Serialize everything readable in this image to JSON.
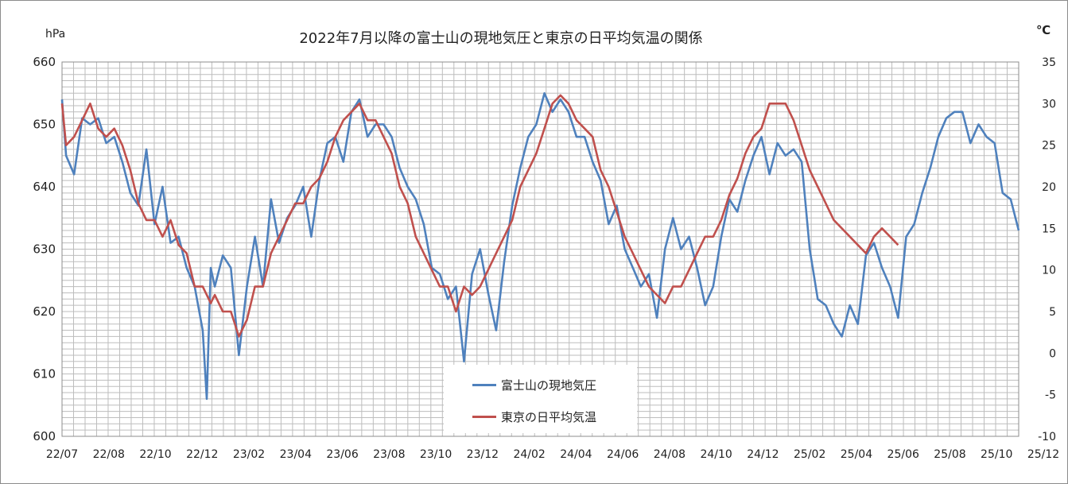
{
  "chart_data": {
    "type": "line",
    "title": "2022年7月以降の富士山の現地気圧と東京の日平均気温の関係",
    "y_left_unit": "hPa",
    "y_right_unit": "℃",
    "y_left_range": [
      600,
      660
    ],
    "y_right_range": [
      -10,
      35
    ],
    "y_left_ticks": [
      "600",
      "610",
      "620",
      "630",
      "640",
      "650",
      "660"
    ],
    "y_right_ticks": [
      "-10",
      "-5",
      "0",
      "5",
      "10",
      "15",
      "20",
      "25",
      "30",
      "35"
    ],
    "x_ticks": [
      "22/07",
      "22/08",
      "22/10",
      "22/12",
      "23/02",
      "23/04",
      "23/06",
      "23/08",
      "23/10",
      "23/12",
      "24/02",
      "24/04",
      "24/06",
      "24/08",
      "24/10",
      "24/12",
      "25/02",
      "25/04",
      "25/06",
      "25/08",
      "25/10",
      "25/12"
    ],
    "grid": true,
    "legend_position": "bottom-center",
    "series": [
      {
        "name": "富士山の現地気圧",
        "axis": "left",
        "color": "#4f81bd",
        "points": [
          [
            0,
            654
          ],
          [
            1,
            645
          ],
          [
            3,
            642
          ],
          [
            5,
            651
          ],
          [
            7,
            650
          ],
          [
            9,
            651
          ],
          [
            11,
            647
          ],
          [
            13,
            648
          ],
          [
            15,
            644
          ],
          [
            17,
            639
          ],
          [
            19,
            637
          ],
          [
            21,
            646
          ],
          [
            23,
            634
          ],
          [
            25,
            640
          ],
          [
            27,
            631
          ],
          [
            29,
            632
          ],
          [
            31,
            627
          ],
          [
            33,
            624
          ],
          [
            35,
            617
          ],
          [
            36,
            606
          ],
          [
            37,
            627
          ],
          [
            38,
            624
          ],
          [
            40,
            629
          ],
          [
            42,
            627
          ],
          [
            44,
            613
          ],
          [
            46,
            624
          ],
          [
            48,
            632
          ],
          [
            50,
            624
          ],
          [
            52,
            638
          ],
          [
            54,
            631
          ],
          [
            56,
            635
          ],
          [
            58,
            637
          ],
          [
            60,
            640
          ],
          [
            62,
            632
          ],
          [
            64,
            641
          ],
          [
            66,
            647
          ],
          [
            68,
            648
          ],
          [
            70,
            644
          ],
          [
            72,
            652
          ],
          [
            74,
            654
          ],
          [
            76,
            648
          ],
          [
            78,
            650
          ],
          [
            80,
            650
          ],
          [
            82,
            648
          ],
          [
            84,
            643
          ],
          [
            86,
            640
          ],
          [
            88,
            638
          ],
          [
            90,
            634
          ],
          [
            92,
            627
          ],
          [
            94,
            626
          ],
          [
            96,
            622
          ],
          [
            98,
            624
          ],
          [
            100,
            612
          ],
          [
            102,
            626
          ],
          [
            104,
            630
          ],
          [
            106,
            623
          ],
          [
            108,
            617
          ],
          [
            110,
            628
          ],
          [
            112,
            637
          ],
          [
            114,
            643
          ],
          [
            116,
            648
          ],
          [
            118,
            650
          ],
          [
            120,
            655
          ],
          [
            122,
            652
          ],
          [
            124,
            654
          ],
          [
            126,
            652
          ],
          [
            128,
            648
          ],
          [
            130,
            648
          ],
          [
            132,
            644
          ],
          [
            134,
            641
          ],
          [
            136,
            634
          ],
          [
            138,
            637
          ],
          [
            140,
            630
          ],
          [
            142,
            627
          ],
          [
            144,
            624
          ],
          [
            146,
            626
          ],
          [
            148,
            619
          ],
          [
            150,
            630
          ],
          [
            152,
            635
          ],
          [
            154,
            630
          ],
          [
            156,
            632
          ],
          [
            158,
            627
          ],
          [
            160,
            621
          ],
          [
            162,
            624
          ],
          [
            164,
            632
          ],
          [
            166,
            638
          ],
          [
            168,
            636
          ],
          [
            170,
            641
          ],
          [
            172,
            645
          ],
          [
            174,
            648
          ],
          [
            176,
            642
          ],
          [
            178,
            647
          ],
          [
            180,
            645
          ],
          [
            182,
            646
          ],
          [
            184,
            644
          ],
          [
            186,
            630
          ],
          [
            188,
            622
          ],
          [
            190,
            621
          ],
          [
            192,
            618
          ],
          [
            194,
            616
          ],
          [
            196,
            621
          ],
          [
            198,
            618
          ],
          [
            200,
            629
          ],
          [
            202,
            631
          ],
          [
            204,
            627
          ],
          [
            206,
            624
          ],
          [
            208,
            619
          ],
          [
            210,
            632
          ],
          [
            212,
            634
          ],
          [
            214,
            639
          ],
          [
            216,
            643
          ],
          [
            218,
            648
          ],
          [
            220,
            651
          ],
          [
            222,
            652
          ],
          [
            224,
            652
          ],
          [
            226,
            647
          ],
          [
            228,
            650
          ],
          [
            230,
            648
          ],
          [
            232,
            647
          ],
          [
            234,
            639
          ],
          [
            236,
            638
          ],
          [
            238,
            633
          ]
        ]
      },
      {
        "name": "東京の日平均気温",
        "axis": "right",
        "color": "#c0504d",
        "points": [
          [
            0,
            30
          ],
          [
            1,
            25
          ],
          [
            3,
            26
          ],
          [
            5,
            28
          ],
          [
            7,
            30
          ],
          [
            9,
            27
          ],
          [
            11,
            26
          ],
          [
            13,
            27
          ],
          [
            15,
            25
          ],
          [
            17,
            22
          ],
          [
            19,
            18
          ],
          [
            21,
            16
          ],
          [
            23,
            16
          ],
          [
            25,
            14
          ],
          [
            27,
            16
          ],
          [
            29,
            13
          ],
          [
            31,
            12
          ],
          [
            33,
            8
          ],
          [
            35,
            8
          ],
          [
            36,
            7
          ],
          [
            37,
            6
          ],
          [
            38,
            7
          ],
          [
            40,
            5
          ],
          [
            42,
            5
          ],
          [
            44,
            2
          ],
          [
            46,
            4
          ],
          [
            48,
            8
          ],
          [
            50,
            8
          ],
          [
            52,
            12
          ],
          [
            54,
            14
          ],
          [
            56,
            16
          ],
          [
            58,
            18
          ],
          [
            60,
            18
          ],
          [
            62,
            20
          ],
          [
            64,
            21
          ],
          [
            66,
            23
          ],
          [
            68,
            26
          ],
          [
            70,
            28
          ],
          [
            72,
            29
          ],
          [
            74,
            30
          ],
          [
            76,
            28
          ],
          [
            78,
            28
          ],
          [
            80,
            26
          ],
          [
            82,
            24
          ],
          [
            84,
            20
          ],
          [
            86,
            18
          ],
          [
            88,
            14
          ],
          [
            90,
            12
          ],
          [
            92,
            10
          ],
          [
            94,
            8
          ],
          [
            96,
            8
          ],
          [
            98,
            5
          ],
          [
            100,
            8
          ],
          [
            102,
            7
          ],
          [
            104,
            8
          ],
          [
            106,
            10
          ],
          [
            108,
            12
          ],
          [
            110,
            14
          ],
          [
            112,
            16
          ],
          [
            114,
            20
          ],
          [
            116,
            22
          ],
          [
            118,
            24
          ],
          [
            120,
            27
          ],
          [
            122,
            30
          ],
          [
            124,
            31
          ],
          [
            126,
            30
          ],
          [
            128,
            28
          ],
          [
            130,
            27
          ],
          [
            132,
            26
          ],
          [
            134,
            22
          ],
          [
            136,
            20
          ],
          [
            138,
            17
          ],
          [
            140,
            14
          ],
          [
            142,
            12
          ],
          [
            144,
            10
          ],
          [
            146,
            8
          ],
          [
            148,
            7
          ],
          [
            150,
            6
          ],
          [
            152,
            8
          ],
          [
            154,
            8
          ],
          [
            156,
            10
          ],
          [
            158,
            12
          ],
          [
            160,
            14
          ],
          [
            162,
            14
          ],
          [
            164,
            16
          ],
          [
            166,
            19
          ],
          [
            168,
            21
          ],
          [
            170,
            24
          ],
          [
            172,
            26
          ],
          [
            174,
            27
          ],
          [
            176,
            30
          ],
          [
            178,
            30
          ],
          [
            180,
            30
          ],
          [
            182,
            28
          ],
          [
            184,
            25
          ],
          [
            186,
            22
          ],
          [
            188,
            20
          ],
          [
            190,
            18
          ],
          [
            192,
            16
          ],
          [
            194,
            15
          ],
          [
            196,
            14
          ],
          [
            198,
            13
          ],
          [
            200,
            12
          ],
          [
            202,
            14
          ],
          [
            204,
            15
          ],
          [
            206,
            14
          ],
          [
            208,
            13
          ]
        ]
      }
    ]
  }
}
